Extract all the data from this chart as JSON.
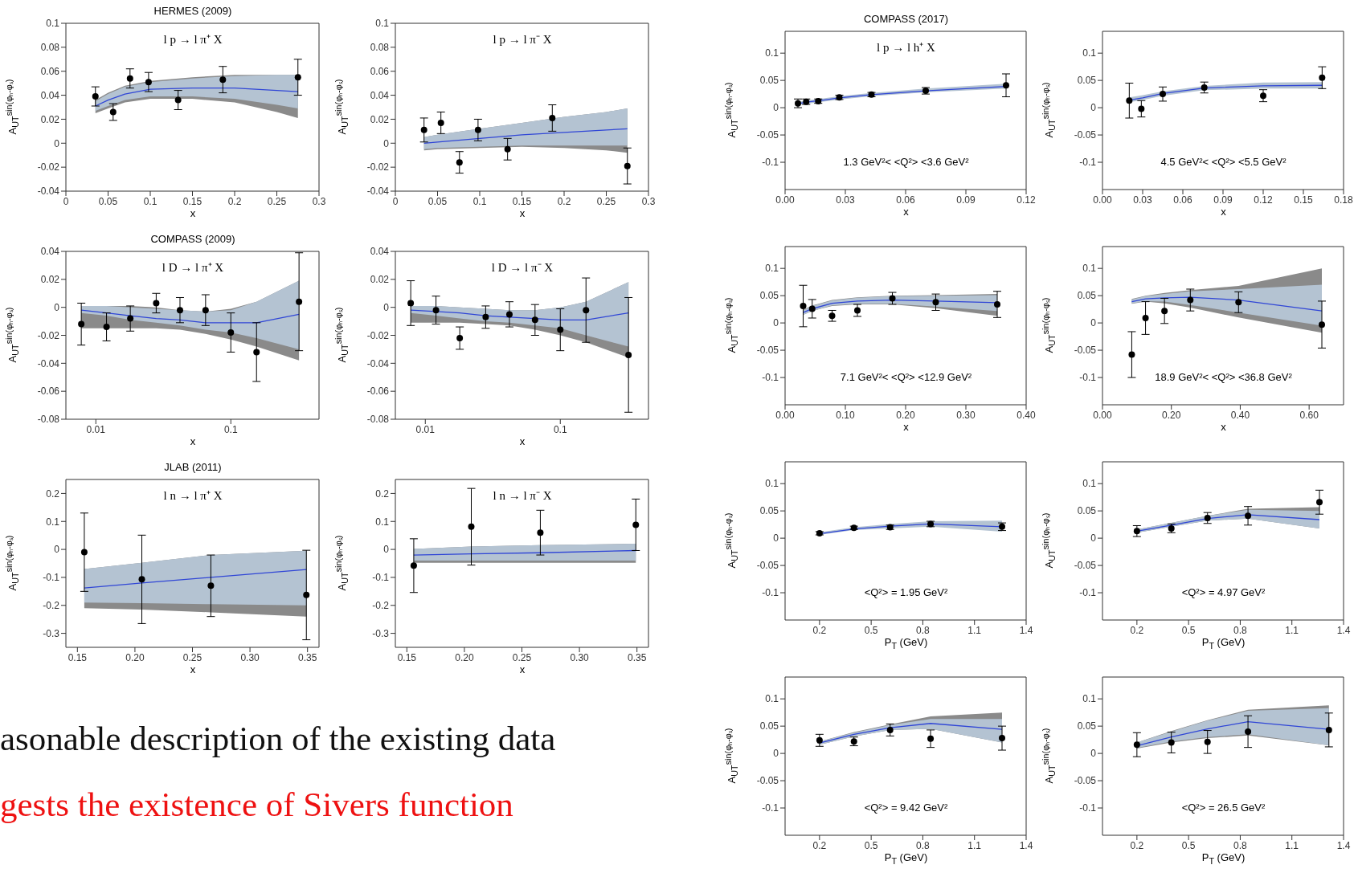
{
  "chart_data": [
    {
      "type": "scatter",
      "title": "HERMES (2009)",
      "annotations": [
        "l p → l π⁺ X"
      ],
      "xlabel": "x",
      "ylabel": "A$_{UT}$$^{sin(φₕ-φₛ)}$",
      "xlim": [
        0,
        0.3
      ],
      "xticks": [
        0,
        0.05,
        0.1,
        0.15,
        0.2,
        0.25,
        0.3
      ],
      "ylim": [
        -0.04,
        0.1
      ],
      "yticks": [
        -0.04,
        -0.02,
        0,
        0.02,
        0.04,
        0.06,
        0.08,
        0.1
      ],
      "series": [
        {
          "type": "line",
          "color": "#8a8a8a",
          "x": [
            0.035,
            0.05,
            0.07,
            0.1,
            0.15,
            0.2,
            0.25,
            0.275
          ],
          "values": [
            null,
            null,
            null,
            null,
            null,
            null,
            null,
            null
          ],
          "lower": [
            0.025,
            0.029,
            0.034,
            0.037,
            0.037,
            0.034,
            0.026,
            0.021
          ],
          "upper": [
            0.036,
            0.042,
            0.048,
            0.052,
            0.055,
            0.057,
            0.057,
            0.057
          ]
        },
        {
          "type": "line",
          "color": "#b4c3d2",
          "x": [
            0.035,
            0.05,
            0.07,
            0.1,
            0.15,
            0.2,
            0.25,
            0.275
          ],
          "values": [
            null,
            null,
            null,
            null,
            null,
            null,
            null,
            null
          ],
          "lower": [
            0.027,
            0.031,
            0.036,
            0.039,
            0.039,
            0.037,
            0.032,
            0.029
          ],
          "upper": [
            0.035,
            0.041,
            0.047,
            0.051,
            0.054,
            0.056,
            0.057,
            0.057
          ]
        },
        {
          "type": "line",
          "color": "#3046d6",
          "x": [
            0.035,
            0.05,
            0.07,
            0.1,
            0.15,
            0.2,
            0.25,
            0.275
          ],
          "values": [
            0.031,
            0.036,
            0.041,
            0.045,
            0.046,
            0.046,
            0.044,
            0.043
          ]
        },
        {
          "type": "scatter",
          "color": "#000000",
          "marker": "circle",
          "x": [
            0.035,
            0.056,
            0.076,
            0.098,
            0.133,
            0.186,
            0.275
          ],
          "values": [
            0.039,
            0.026,
            0.054,
            0.051,
            0.036,
            0.053,
            0.055
          ],
          "errors": [
            0.008,
            0.007,
            0.008,
            0.008,
            0.008,
            0.011,
            0.015
          ]
        }
      ]
    },
    {
      "type": "scatter",
      "annotations": [
        "l p → l π⁻ X"
      ],
      "xlabel": "x",
      "ylabel": "A$_{UT}$$^{sin(φₕ-φₛ)}$",
      "xlim": [
        0,
        0.3
      ],
      "xticks": [
        0,
        0.05,
        0.1,
        0.15,
        0.2,
        0.25,
        0.3
      ],
      "ylim": [
        -0.04,
        0.1
      ],
      "yticks": [
        -0.04,
        -0.02,
        0,
        0.02,
        0.04,
        0.06,
        0.08,
        0.1
      ],
      "series": [
        {
          "type": "line",
          "color": "#8a8a8a",
          "x": [
            0.034,
            0.05,
            0.1,
            0.15,
            0.2,
            0.25,
            0.275
          ],
          "values": [
            null,
            null,
            null,
            null,
            null,
            null,
            null
          ],
          "lower": [
            -0.006,
            -0.005,
            -0.004,
            -0.003,
            -0.004,
            -0.006,
            -0.008
          ],
          "upper": [
            0.005,
            0.007,
            0.012,
            0.017,
            0.022,
            0.026,
            0.029
          ]
        },
        {
          "type": "line",
          "color": "#b4c3d2",
          "x": [
            0.034,
            0.05,
            0.1,
            0.15,
            0.2,
            0.25,
            0.275
          ],
          "values": [
            null,
            null,
            null,
            null,
            null,
            null,
            null
          ],
          "lower": [
            -0.005,
            -0.004,
            -0.003,
            -0.002,
            -0.002,
            -0.002,
            -0.002
          ],
          "upper": [
            0.005,
            0.007,
            0.012,
            0.017,
            0.022,
            0.026,
            0.029
          ]
        },
        {
          "type": "line",
          "color": "#3046d6",
          "x": [
            0.034,
            0.05,
            0.1,
            0.15,
            0.2,
            0.25,
            0.275
          ],
          "values": [
            0,
            0.001,
            0.004,
            0.007,
            0.009,
            0.011,
            0.012
          ]
        },
        {
          "type": "scatter",
          "color": "#000000",
          "marker": "circle",
          "x": [
            0.034,
            0.054,
            0.076,
            0.098,
            0.133,
            0.186,
            0.275
          ],
          "values": [
            0.011,
            0.017,
            -0.016,
            0.011,
            -0.005,
            0.021,
            -0.019
          ],
          "errors": [
            0.01,
            0.009,
            0.009,
            0.009,
            0.009,
            0.011,
            0.015
          ]
        }
      ]
    },
    {
      "type": "scatter",
      "title": "COMPASS (2009)",
      "annotations": [
        "l D → l π⁺ X"
      ],
      "xlabel": "x",
      "ylabel": "A$_{UT}$$^{sin(φₕ-φₛ)}$",
      "log": "x",
      "xlim": [
        0.006,
        0.45
      ],
      "xticks": [
        0.01,
        0.1
      ],
      "ylim": [
        -0.08,
        0.04
      ],
      "yticks": [
        -0.08,
        -0.06,
        -0.04,
        -0.02,
        0,
        0.02,
        0.04
      ],
      "series": [
        {
          "type": "line",
          "color": "#8a8a8a",
          "x": [
            0.0078,
            0.012,
            0.018,
            0.028,
            0.042,
            0.065,
            0.1,
            0.155,
            0.32
          ],
          "values": [
            null,
            null,
            null,
            null,
            null,
            null,
            null,
            null,
            null
          ],
          "lower": [
            -0.015,
            -0.015,
            -0.015,
            -0.015,
            -0.016,
            -0.019,
            -0.023,
            -0.028,
            -0.038
          ],
          "upper": [
            0.001,
            0.001,
            0.001,
            0,
            -0.002,
            -0.003,
            -0.001,
            0.004,
            0.019
          ]
        },
        {
          "type": "line",
          "color": "#b4c3d2",
          "x": [
            0.0078,
            0.012,
            0.018,
            0.028,
            0.042,
            0.065,
            0.1,
            0.155,
            0.32
          ],
          "values": [
            null,
            null,
            null,
            null,
            null,
            null,
            null,
            null,
            null
          ],
          "lower": [
            -0.004,
            -0.006,
            -0.009,
            -0.011,
            -0.013,
            -0.016,
            -0.018,
            -0.022,
            -0.03
          ],
          "upper": [
            0.001,
            0.001,
            0,
            -0.001,
            -0.002,
            -0.003,
            -0.002,
            0.004,
            0.019
          ]
        },
        {
          "type": "line",
          "color": "#3046d6",
          "x": [
            0.0078,
            0.012,
            0.018,
            0.028,
            0.042,
            0.065,
            0.1,
            0.155,
            0.32
          ],
          "values": [
            -0.002,
            -0.004,
            -0.006,
            -0.008,
            -0.009,
            -0.011,
            -0.011,
            -0.011,
            -0.005
          ]
        },
        {
          "type": "scatter",
          "color": "#000000",
          "marker": "circle",
          "x": [
            0.0078,
            0.012,
            0.018,
            0.028,
            0.042,
            0.065,
            0.1,
            0.155,
            0.32
          ],
          "values": [
            -0.012,
            -0.014,
            -0.008,
            0.003,
            -0.002,
            -0.002,
            -0.018,
            -0.032,
            0.004
          ],
          "errors": [
            0.015,
            0.01,
            0.009,
            0.007,
            0.009,
            0.011,
            0.014,
            0.021,
            0.035
          ]
        }
      ]
    },
    {
      "type": "scatter",
      "annotations": [
        "l D → l π⁻ X"
      ],
      "xlabel": "x",
      "ylabel": "A$_{UT}$$^{sin(φₕ-φₛ)}$",
      "log": "x",
      "xlim": [
        0.006,
        0.45
      ],
      "xticks": [
        0.01,
        0.1
      ],
      "ylim": [
        -0.08,
        0.04
      ],
      "yticks": [
        -0.08,
        -0.06,
        -0.04,
        -0.02,
        0,
        0.02,
        0.04
      ],
      "series": [
        {
          "type": "line",
          "color": "#8a8a8a",
          "x": [
            0.0078,
            0.012,
            0.018,
            0.028,
            0.042,
            0.065,
            0.1,
            0.155,
            0.32
          ],
          "values": [
            null,
            null,
            null,
            null,
            null,
            null,
            null,
            null,
            null
          ],
          "lower": [
            -0.011,
            -0.011,
            -0.011,
            -0.012,
            -0.013,
            -0.016,
            -0.02,
            -0.025,
            -0.036
          ],
          "upper": [
            0.001,
            0.001,
            0,
            -0.001,
            -0.002,
            -0.002,
            0,
            0.004,
            0.018
          ]
        },
        {
          "type": "line",
          "color": "#b4c3d2",
          "x": [
            0.0078,
            0.012,
            0.018,
            0.028,
            0.042,
            0.065,
            0.1,
            0.155,
            0.32
          ],
          "values": [
            null,
            null,
            null,
            null,
            null,
            null,
            null,
            null,
            null
          ],
          "lower": [
            -0.004,
            -0.006,
            -0.008,
            -0.01,
            -0.011,
            -0.013,
            -0.015,
            -0.02,
            -0.028
          ],
          "upper": [
            0.001,
            0.001,
            0,
            -0.001,
            -0.002,
            -0.002,
            0,
            0.004,
            0.018
          ]
        },
        {
          "type": "line",
          "color": "#3046d6",
          "x": [
            0.0078,
            0.012,
            0.018,
            0.028,
            0.042,
            0.065,
            0.1,
            0.155,
            0.32
          ],
          "values": [
            -0.002,
            -0.003,
            -0.004,
            -0.006,
            -0.007,
            -0.008,
            -0.009,
            -0.009,
            -0.004
          ]
        },
        {
          "type": "scatter",
          "color": "#000000",
          "marker": "circle",
          "x": [
            0.0078,
            0.012,
            0.018,
            0.028,
            0.042,
            0.065,
            0.1,
            0.155,
            0.32
          ],
          "values": [
            0.003,
            -0.002,
            -0.022,
            -0.007,
            -0.005,
            -0.009,
            -0.016,
            -0.002,
            -0.034
          ],
          "errors": [
            0.016,
            0.01,
            0.008,
            0.008,
            0.009,
            0.011,
            0.015,
            0.023,
            0.041
          ]
        }
      ]
    },
    {
      "type": "scatter",
      "title": "JLAB (2011)",
      "annotations": [
        "l n → l π⁺ X"
      ],
      "xlabel": "x",
      "ylabel": "A$_{UT}$$^{sin(φₕ-φₛ)}$",
      "xlim": [
        0.14,
        0.36
      ],
      "xticks": [
        {
          "value": 0.15,
          "label": "0.15"
        },
        {
          "value": 0.2,
          "label": "0.20"
        },
        {
          "value": 0.25,
          "label": "0.25"
        },
        {
          "value": 0.3,
          "label": "0.30"
        },
        {
          "value": 0.35,
          "label": "0.35"
        }
      ],
      "ylim": [
        -0.35,
        0.25
      ],
      "yticks": [
        -0.3,
        -0.2,
        -0.1,
        0,
        0.1,
        0.2
      ],
      "series": [
        {
          "type": "line",
          "color": "#8a8a8a",
          "x": [
            0.156,
            0.206,
            0.266,
            0.349
          ],
          "values": [
            null,
            null,
            null,
            null
          ],
          "lower": [
            -0.21,
            -0.215,
            -0.225,
            -0.24
          ],
          "upper": [
            -0.07,
            -0.048,
            -0.02,
            -0.005
          ]
        },
        {
          "type": "line",
          "color": "#b4c3d2",
          "x": [
            0.156,
            0.206,
            0.266,
            0.349
          ],
          "values": [
            null,
            null,
            null,
            null
          ],
          "lower": [
            -0.19,
            -0.192,
            -0.196,
            -0.2
          ],
          "upper": [
            -0.07,
            -0.048,
            -0.02,
            -0.005
          ]
        },
        {
          "type": "line",
          "color": "#3046d6",
          "x": [
            0.156,
            0.206,
            0.266,
            0.349
          ],
          "values": [
            -0.138,
            -0.12,
            -0.1,
            -0.072
          ]
        },
        {
          "type": "scatter",
          "color": "#000000",
          "marker": "circle",
          "x": [
            0.156,
            0.206,
            0.266,
            0.349
          ],
          "values": [
            -0.01,
            -0.107,
            -0.13,
            -0.163
          ],
          "errors": [
            0.14,
            0.158,
            0.11,
            0.16
          ]
        }
      ]
    },
    {
      "type": "scatter",
      "annotations": [
        "l n → l π⁻ X"
      ],
      "xlabel": "x",
      "ylabel": "A$_{UT}$$^{sin(φₕ-φₛ)}$",
      "xlim": [
        0.14,
        0.36
      ],
      "xticks": [
        {
          "value": 0.15,
          "label": "0.15"
        },
        {
          "value": 0.2,
          "label": "0.20"
        },
        {
          "value": 0.25,
          "label": "0.25"
        },
        {
          "value": 0.3,
          "label": "0.30"
        },
        {
          "value": 0.35,
          "label": "0.35"
        }
      ],
      "ylim": [
        -0.35,
        0.25
      ],
      "yticks": [
        -0.3,
        -0.2,
        -0.1,
        0,
        0.1,
        0.2
      ],
      "series": [
        {
          "type": "line",
          "color": "#8a8a8a",
          "x": [
            0.156,
            0.206,
            0.266,
            0.349
          ],
          "values": [
            null,
            null,
            null,
            null
          ],
          "lower": [
            -0.048,
            -0.048,
            -0.048,
            -0.048
          ],
          "upper": [
            0.002,
            0.01,
            0.015,
            0.02
          ]
        },
        {
          "type": "line",
          "color": "#b4c3d2",
          "x": [
            0.156,
            0.206,
            0.266,
            0.349
          ],
          "values": [
            null,
            null,
            null,
            null
          ],
          "lower": [
            -0.04,
            -0.04,
            -0.04,
            -0.04
          ],
          "upper": [
            0.002,
            0.01,
            0.015,
            0.02
          ]
        },
        {
          "type": "line",
          "color": "#3046d6",
          "x": [
            0.156,
            0.206,
            0.266,
            0.349
          ],
          "values": [
            -0.02,
            -0.016,
            -0.012,
            -0.004
          ]
        },
        {
          "type": "scatter",
          "color": "#000000",
          "marker": "circle",
          "x": [
            0.156,
            0.206,
            0.266,
            0.349
          ],
          "values": [
            -0.058,
            0.081,
            0.06,
            0.088
          ],
          "errors": [
            0.096,
            0.137,
            0.08,
            0.092
          ]
        }
      ]
    },
    {
      "type": "scatter",
      "title": "COMPASS (2017)",
      "annotations": [
        "l p → l h⁺ X",
        "1.3 GeV²< <Q²> <3.6 GeV²"
      ],
      "xlabel": "x",
      "ylabel": "A$_{UT}$$^{sin(φₕ-φₛ)}$",
      "xlim": [
        0,
        0.12
      ],
      "xticks": [
        {
          "value": 0,
          "label": "0.00"
        },
        {
          "value": 0.03,
          "label": "0.03"
        },
        {
          "value": 0.06,
          "label": "0.06"
        },
        {
          "value": 0.09,
          "label": "0.09"
        },
        {
          "value": 0.12,
          "label": "0.12"
        }
      ],
      "ylim": [
        -0.15,
        0.14
      ],
      "yticks": [
        -0.1,
        -0.05,
        0,
        0.05,
        0.1
      ],
      "series": [
        {
          "type": "line",
          "color": "#b4c3d2",
          "x": [
            0.006,
            0.01,
            0.017,
            0.027,
            0.043,
            0.07,
            0.11
          ],
          "values": [
            null,
            null,
            null,
            null,
            null,
            null,
            null
          ],
          "lower": [
            0.004,
            0.007,
            0.01,
            0.015,
            0.021,
            0.028,
            0.035
          ],
          "upper": [
            0.01,
            0.013,
            0.016,
            0.021,
            0.027,
            0.035,
            0.044
          ]
        },
        {
          "type": "line",
          "color": "#3046d6",
          "x": [
            0.006,
            0.01,
            0.017,
            0.027,
            0.043,
            0.07,
            0.11
          ],
          "values": [
            0.007,
            0.01,
            0.013,
            0.018,
            0.024,
            0.031,
            0.039
          ]
        },
        {
          "type": "scatter",
          "color": "#000000",
          "marker": "circle",
          "x": [
            0.0064,
            0.0105,
            0.0165,
            0.027,
            0.043,
            0.07,
            0.11
          ],
          "values": [
            0.008,
            0.011,
            0.012,
            0.019,
            0.024,
            0.031,
            0.041
          ],
          "errors": [
            0.008,
            0.005,
            0.004,
            0.004,
            0.004,
            0.006,
            0.021
          ]
        }
      ]
    },
    {
      "type": "scatter",
      "annotations": [
        "4.5 GeV²< <Q²> <5.5 GeV²"
      ],
      "xlabel": "x",
      "ylabel": "A$_{UT}$$^{sin(φₕ-φₛ)}$",
      "xlim": [
        0,
        0.18
      ],
      "xticks": [
        {
          "value": 0,
          "label": "0.00"
        },
        {
          "value": 0.03,
          "label": "0.03"
        },
        {
          "value": 0.06,
          "label": "0.06"
        },
        {
          "value": 0.09,
          "label": "0.09"
        },
        {
          "value": 0.12,
          "label": "0.12"
        },
        {
          "value": 0.15,
          "label": "0.15"
        },
        {
          "value": 0.18,
          "label": "0.18"
        }
      ],
      "ylim": [
        -0.15,
        0.14
      ],
      "yticks": [
        -0.1,
        -0.05,
        0,
        0.05,
        0.1
      ],
      "series": [
        {
          "type": "line",
          "color": "#b4c3d2",
          "x": [
            0.02,
            0.03,
            0.045,
            0.076,
            0.12,
            0.164
          ],
          "values": [
            null,
            null,
            null,
            null,
            null,
            null
          ],
          "lower": [
            0.01,
            0.014,
            0.022,
            0.032,
            0.035,
            0.035
          ],
          "upper": [
            0.019,
            0.023,
            0.03,
            0.04,
            0.046,
            0.047
          ]
        },
        {
          "type": "line",
          "color": "#3046d6",
          "x": [
            0.02,
            0.03,
            0.045,
            0.076,
            0.12,
            0.164
          ],
          "values": [
            0.014,
            0.018,
            0.026,
            0.036,
            0.04,
            0.041
          ]
        },
        {
          "type": "scatter",
          "color": "#000000",
          "marker": "circle",
          "x": [
            0.02,
            0.029,
            0.045,
            0.076,
            0.12,
            0.164
          ],
          "values": [
            0.013,
            -0.002,
            0.025,
            0.037,
            0.022,
            0.055
          ],
          "errors": [
            0.032,
            0.015,
            0.013,
            0.01,
            0.011,
            0.02
          ]
        }
      ]
    },
    {
      "type": "scatter",
      "annotations": [
        "7.1 GeV²< <Q²> <12.9 GeV²"
      ],
      "xlabel": "x",
      "ylabel": "A$_{UT}$$^{sin(φₕ-φₛ)}$",
      "xlim": [
        0,
        0.4
      ],
      "xticks": [
        {
          "value": 0,
          "label": "0.00"
        },
        {
          "value": 0.1,
          "label": "0.10"
        },
        {
          "value": 0.2,
          "label": "0.20"
        },
        {
          "value": 0.3,
          "label": "0.30"
        },
        {
          "value": 0.4,
          "label": "0.40"
        }
      ],
      "ylim": [
        -0.15,
        0.14
      ],
      "yticks": [
        -0.1,
        -0.05,
        0,
        0.05,
        0.1
      ],
      "series": [
        {
          "type": "line",
          "color": "#8a8a8a",
          "x": [
            0.03,
            0.045,
            0.078,
            0.12,
            0.178,
            0.25,
            0.352
          ],
          "values": [
            null,
            null,
            null,
            null,
            null,
            null,
            null
          ],
          "lower": [
            0.015,
            0.022,
            0.031,
            0.034,
            0.034,
            0.027,
            0.013
          ],
          "upper": [
            0.024,
            0.032,
            0.042,
            0.047,
            0.05,
            0.051,
            0.053
          ]
        },
        {
          "type": "line",
          "color": "#b4c3d2",
          "x": [
            0.03,
            0.045,
            0.078,
            0.12,
            0.178,
            0.25,
            0.352
          ],
          "values": [
            null,
            null,
            null,
            null,
            null,
            null,
            null
          ],
          "lower": [
            0.015,
            0.022,
            0.032,
            0.035,
            0.035,
            0.03,
            0.022
          ],
          "upper": [
            0.023,
            0.031,
            0.041,
            0.046,
            0.049,
            0.05,
            0.051
          ]
        },
        {
          "type": "line",
          "color": "#3046d6",
          "x": [
            0.03,
            0.045,
            0.078,
            0.12,
            0.178,
            0.25,
            0.352
          ],
          "values": [
            0.019,
            0.026,
            0.036,
            0.04,
            0.042,
            0.04,
            0.037
          ]
        },
        {
          "type": "scatter",
          "color": "#000000",
          "marker": "circle",
          "x": [
            0.03,
            0.045,
            0.078,
            0.12,
            0.178,
            0.25,
            0.352
          ],
          "values": [
            0.031,
            0.026,
            0.013,
            0.023,
            0.045,
            0.038,
            0.034
          ],
          "errors": [
            0.038,
            0.017,
            0.01,
            0.011,
            0.011,
            0.015,
            0.024
          ]
        }
      ]
    },
    {
      "type": "scatter",
      "annotations": [
        "18.9 GeV²< <Q²> <36.8 GeV²"
      ],
      "xlabel": "x",
      "ylabel": "A$_{UT}$$^{sin(φₕ-φₛ)}$",
      "xlim": [
        0,
        0.7
      ],
      "xticks": [
        {
          "value": 0,
          "label": "0.00"
        },
        {
          "value": 0.2,
          "label": "0.20"
        },
        {
          "value": 0.4,
          "label": "0.40"
        },
        {
          "value": 0.6,
          "label": "0.60"
        }
      ],
      "ylim": [
        -0.15,
        0.14
      ],
      "yticks": [
        -0.1,
        -0.05,
        0,
        0.05,
        0.1
      ],
      "series": [
        {
          "type": "line",
          "color": "#8a8a8a",
          "x": [
            0.085,
            0.125,
            0.18,
            0.255,
            0.395,
            0.637
          ],
          "values": [
            null,
            null,
            null,
            null,
            null,
            null
          ],
          "lower": [
            0.035,
            0.039,
            0.036,
            0.028,
            0.01,
            -0.018
          ],
          "upper": [
            0.044,
            0.05,
            0.055,
            0.06,
            0.068,
            0.1
          ]
        },
        {
          "type": "line",
          "color": "#b4c3d2",
          "x": [
            0.085,
            0.125,
            0.18,
            0.255,
            0.395,
            0.637
          ],
          "values": [
            null,
            null,
            null,
            null,
            null,
            null
          ],
          "lower": [
            0.036,
            0.04,
            0.039,
            0.033,
            0.019,
            -0.005
          ],
          "upper": [
            0.043,
            0.049,
            0.053,
            0.058,
            0.062,
            0.07
          ]
        },
        {
          "type": "line",
          "color": "#3046d6",
          "x": [
            0.085,
            0.125,
            0.18,
            0.255,
            0.395,
            0.637
          ],
          "values": [
            0.039,
            0.044,
            0.046,
            0.047,
            0.042,
            0.022
          ]
        },
        {
          "type": "scatter",
          "color": "#000000",
          "marker": "circle",
          "x": [
            0.085,
            0.125,
            0.18,
            0.255,
            0.395,
            0.637
          ],
          "values": [
            -0.058,
            0.009,
            0.022,
            0.042,
            0.038,
            -0.003
          ],
          "errors": [
            0.042,
            0.03,
            0.023,
            0.02,
            0.019,
            0.043
          ]
        }
      ]
    },
    {
      "type": "scatter",
      "annotations": [
        "<Q²> = 1.95 GeV²"
      ],
      "xlabel": "P$_{T}$ (GeV)",
      "ylabel": "A$_{UT}$$^{sin(φₕ-φₛ)}$",
      "xlim": [
        0,
        1.4
      ],
      "xticks": [
        0.2,
        0.5,
        0.8,
        1.1,
        1.4
      ],
      "ylim": [
        -0.15,
        0.14
      ],
      "yticks": [
        -0.1,
        -0.05,
        0,
        0.05,
        0.1
      ],
      "series": [
        {
          "type": "line",
          "color": "#b4c3d2",
          "x": [
            0.2,
            0.4,
            0.61,
            0.845,
            1.26
          ],
          "values": [
            null,
            null,
            null,
            null,
            null
          ],
          "lower": [
            0.006,
            0.015,
            0.018,
            0.021,
            0.012
          ],
          "upper": [
            0.011,
            0.02,
            0.026,
            0.031,
            0.032
          ]
        },
        {
          "type": "line",
          "color": "#3046d6",
          "x": [
            0.2,
            0.4,
            0.61,
            0.845,
            1.26
          ],
          "values": [
            0.008,
            0.017,
            0.022,
            0.026,
            0.021
          ]
        },
        {
          "type": "scatter",
          "color": "#000000",
          "marker": "circle",
          "x": [
            0.2,
            0.4,
            0.61,
            0.845,
            1.26
          ],
          "values": [
            0.009,
            0.019,
            0.02,
            0.026,
            0.021
          ],
          "errors": [
            0.003,
            0.003,
            0.004,
            0.005,
            0.007
          ]
        }
      ]
    },
    {
      "type": "scatter",
      "annotations": [
        "<Q²> = 4.97 GeV²"
      ],
      "xlabel": "P$_{T}$ (GeV)",
      "ylabel": "A$_{UT}$$^{sin(φₕ-φₛ)}$",
      "xlim": [
        0,
        1.4
      ],
      "xticks": [
        0.2,
        0.5,
        0.8,
        1.1,
        1.4
      ],
      "ylim": [
        -0.15,
        0.14
      ],
      "yticks": [
        -0.1,
        -0.05,
        0,
        0.05,
        0.1
      ],
      "series": [
        {
          "type": "line",
          "color": "#8a8a8a",
          "x": [
            0.2,
            0.4,
            0.61,
            0.845,
            1.26
          ],
          "values": [
            null,
            null,
            null,
            null,
            null
          ],
          "lower": [
            0.01,
            0.021,
            0.032,
            0.036,
            0.018
          ],
          "upper": [
            0.016,
            0.028,
            0.041,
            0.054,
            0.057
          ]
        },
        {
          "type": "line",
          "color": "#b4c3d2",
          "x": [
            0.2,
            0.4,
            0.61,
            0.845,
            1.26
          ],
          "values": [
            null,
            null,
            null,
            null,
            null
          ],
          "lower": [
            0.01,
            0.021,
            0.032,
            0.036,
            0.018
          ],
          "upper": [
            0.016,
            0.028,
            0.041,
            0.052,
            0.05
          ]
        },
        {
          "type": "line",
          "color": "#3046d6",
          "x": [
            0.2,
            0.4,
            0.61,
            0.845,
            1.26
          ],
          "values": [
            0.013,
            0.024,
            0.036,
            0.043,
            0.034
          ]
        },
        {
          "type": "scatter",
          "color": "#000000",
          "marker": "circle",
          "x": [
            0.2,
            0.4,
            0.61,
            0.845,
            1.26
          ],
          "values": [
            0.013,
            0.018,
            0.037,
            0.041,
            0.066
          ],
          "errors": [
            0.01,
            0.008,
            0.01,
            0.017,
            0.022
          ]
        }
      ]
    },
    {
      "type": "scatter",
      "annotations": [
        "<Q²> = 9.42 GeV²"
      ],
      "xlabel": "P$_{T}$ (GeV)",
      "ylabel": "A$_{UT}$$^{sin(φₕ-φₛ)}$",
      "xlim": [
        0,
        1.4
      ],
      "xticks": [
        0.2,
        0.5,
        0.8,
        1.1,
        1.4
      ],
      "ylim": [
        -0.15,
        0.14
      ],
      "yticks": [
        -0.1,
        -0.05,
        0,
        0.05,
        0.1
      ],
      "series": [
        {
          "type": "line",
          "color": "#8a8a8a",
          "x": [
            0.2,
            0.4,
            0.61,
            0.845,
            1.26
          ],
          "values": [
            null,
            null,
            null,
            null,
            null
          ],
          "lower": [
            0.016,
            0.031,
            0.043,
            0.045,
            0.02
          ],
          "upper": [
            0.022,
            0.039,
            0.053,
            0.068,
            0.075
          ]
        },
        {
          "type": "line",
          "color": "#b4c3d2",
          "x": [
            0.2,
            0.4,
            0.61,
            0.845,
            1.26
          ],
          "values": [
            null,
            null,
            null,
            null,
            null
          ],
          "lower": [
            0.016,
            0.031,
            0.043,
            0.045,
            0.02
          ],
          "upper": [
            0.022,
            0.038,
            0.052,
            0.063,
            0.063
          ]
        },
        {
          "type": "line",
          "color": "#3046d6",
          "x": [
            0.2,
            0.4,
            0.61,
            0.845,
            1.26
          ],
          "values": [
            0.019,
            0.035,
            0.047,
            0.055,
            0.044
          ]
        },
        {
          "type": "scatter",
          "color": "#000000",
          "marker": "circle",
          "x": [
            0.2,
            0.4,
            0.61,
            0.845,
            1.26
          ],
          "values": [
            0.024,
            0.022,
            0.043,
            0.027,
            0.028
          ],
          "errors": [
            0.011,
            0.008,
            0.011,
            0.016,
            0.022
          ]
        }
      ]
    },
    {
      "type": "scatter",
      "annotations": [
        "<Q²> = 26.5 GeV²"
      ],
      "xlabel": "P$_{T}$ (GeV)",
      "ylabel": "A$_{UT}$$^{sin(φₕ-φₛ)}$",
      "xlim": [
        0,
        1.4
      ],
      "xticks": [
        0.2,
        0.5,
        0.8,
        1.1,
        1.4
      ],
      "ylim": [
        -0.15,
        0.14
      ],
      "yticks": [
        -0.1,
        -0.05,
        0,
        0.05,
        0.1
      ],
      "series": [
        {
          "type": "line",
          "color": "#8a8a8a",
          "x": [
            0.2,
            0.4,
            0.61,
            0.845,
            1.315
          ],
          "values": [
            null,
            null,
            null,
            null,
            null
          ],
          "lower": [
            0.009,
            0.02,
            0.028,
            0.033,
            0.015
          ],
          "upper": [
            0.02,
            0.041,
            0.061,
            0.08,
            0.088
          ]
        },
        {
          "type": "line",
          "color": "#b4c3d2",
          "x": [
            0.2,
            0.4,
            0.61,
            0.845,
            1.315
          ],
          "values": [
            null,
            null,
            null,
            null,
            null
          ],
          "lower": [
            0.01,
            0.022,
            0.03,
            0.035,
            0.015
          ],
          "upper": [
            0.02,
            0.04,
            0.06,
            0.078,
            0.083
          ]
        },
        {
          "type": "line",
          "color": "#3046d6",
          "x": [
            0.2,
            0.4,
            0.61,
            0.845,
            1.315
          ],
          "values": [
            0.014,
            0.03,
            0.045,
            0.058,
            0.044
          ]
        },
        {
          "type": "scatter",
          "color": "#000000",
          "marker": "circle",
          "x": [
            0.2,
            0.4,
            0.61,
            0.845,
            1.315
          ],
          "values": [
            0.016,
            0.02,
            0.021,
            0.04,
            0.043
          ],
          "errors": [
            0.022,
            0.019,
            0.021,
            0.029,
            0.031
          ]
        }
      ]
    },
    {
      "type": "other",
      "annotations": [
        "asonable description of the existing data",
        "gests the existence of Sivers function"
      ]
    }
  ]
}
